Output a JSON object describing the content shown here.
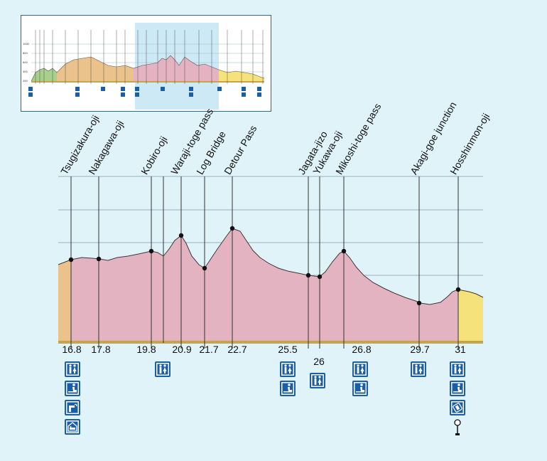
{
  "chart_data": {
    "type": "area",
    "title": "",
    "xlabel": "",
    "ylabel": "",
    "segment_colors": {
      "orange": "#e9c28c",
      "pink": "#e3b3c1",
      "yellow": "#f6e27a",
      "green": "#a9cf8f"
    },
    "points": [
      {
        "name": "Tsugizakura-oji",
        "x": 16.8
      },
      {
        "name": "Nakagawa-oji",
        "x": 17.8
      },
      {
        "name": "Kobiro-oji",
        "x": 19.8
      },
      {
        "name": "Waraji-toge pass",
        "x": 20.9
      },
      {
        "name": "Log Bridge",
        "x": 21.7
      },
      {
        "name": "Detour Pass",
        "x": 22.7
      },
      {
        "name": "Jagata-jizo",
        "x": 25.5
      },
      {
        "name": "Yukawa-oji",
        "x": 26
      },
      {
        "name": "Mikoshi-toge pass",
        "x": 26.8
      },
      {
        "name": "Akagi-goe junction",
        "x": 29.7
      },
      {
        "name": "Hosshinmon-oji",
        "x": 31
      }
    ],
    "distance_labels": [
      "16.8",
      "17.8",
      "19.8",
      "20.9",
      "21.7",
      "22.7",
      "25.5",
      "26",
      "26.8",
      "29.7",
      "31"
    ],
    "facilities": [
      {
        "at": "16.8",
        "icons": [
          "toilet-icon",
          "bench-icon",
          "water-fountain-icon",
          "lodging-icon"
        ]
      },
      {
        "at": "20.9",
        "icons": [
          "toilet-icon"
        ]
      },
      {
        "at": "25.5",
        "icons": [
          "toilet-icon",
          "bench-icon"
        ]
      },
      {
        "at": "26",
        "icons": [
          "toilet-icon"
        ]
      },
      {
        "at": "26.8",
        "icons": [
          "toilet-icon",
          "bench-icon"
        ]
      },
      {
        "at": "29.7",
        "icons": [
          "toilet-icon"
        ]
      },
      {
        "at": "31",
        "icons": [
          "toilet-icon",
          "bench-icon",
          "vending-machine-icon",
          "bus-stop-icon"
        ]
      }
    ]
  },
  "minimap": {
    "y_ticks": [
      "1000",
      "800",
      "600",
      "400",
      "200"
    ],
    "highlight_color": "#bfe3f2"
  }
}
